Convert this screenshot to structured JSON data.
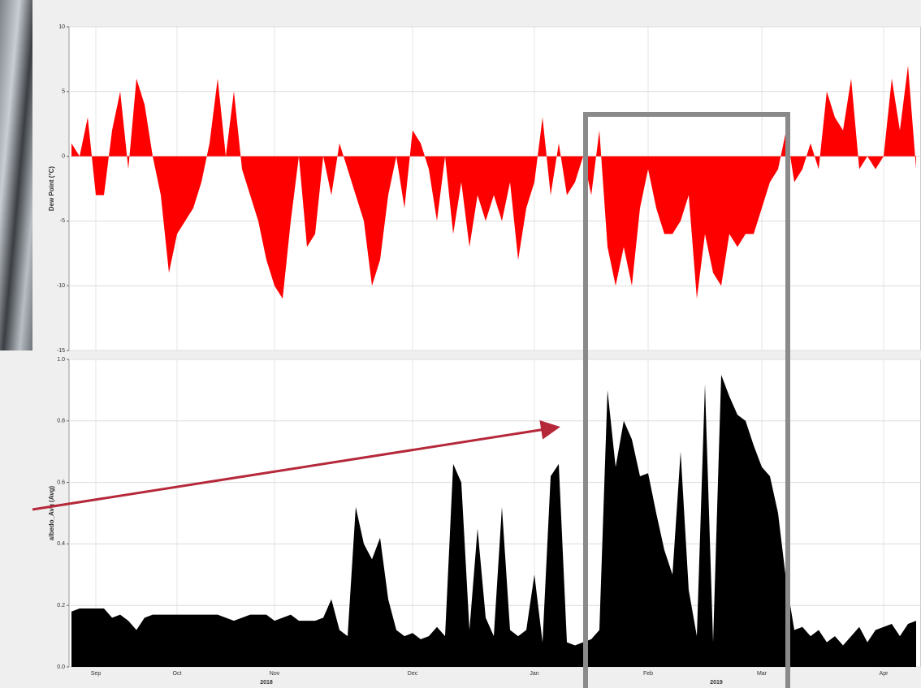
{
  "chart_data": [
    {
      "type": "area",
      "y_label": "Dew Point (°C)",
      "color": "#ff0000",
      "ylim": [
        -15,
        10
      ],
      "yticks": [
        -15,
        -10,
        -5,
        0,
        5,
        10
      ],
      "grid": true,
      "values": [
        1,
        0,
        3,
        -3,
        -3,
        2,
        5,
        -1,
        6,
        4,
        0,
        -3,
        -9,
        -6,
        -5,
        -4,
        -2,
        1,
        6,
        0,
        5,
        -1,
        -3,
        -5,
        -8,
        -10,
        -11,
        -5,
        0,
        -7,
        -6,
        0,
        -3,
        1,
        -1,
        -3,
        -5,
        -10,
        -8,
        -3,
        0,
        -4,
        2,
        1,
        -1,
        -5,
        0,
        -6,
        -2,
        -7,
        -3,
        -5,
        -3,
        -5,
        -2,
        -8,
        -4,
        -2,
        3,
        -3,
        1,
        -3,
        -2,
        0,
        -3,
        2,
        -7,
        -10,
        -7,
        -10,
        -4,
        -1,
        -4,
        -6,
        -6,
        -5,
        -3,
        -11,
        -6,
        -9,
        -10,
        -6,
        -7,
        -6,
        -6,
        -4,
        -2,
        -1,
        2,
        -2,
        -1,
        1,
        -1,
        5,
        3,
        2,
        6,
        -1,
        0,
        -1,
        0,
        6,
        2,
        7,
        -1
      ]
    },
    {
      "type": "area",
      "y_label": "albedo_Avg (Avg)",
      "color": "#000000",
      "ylim": [
        0,
        1
      ],
      "yticks": [
        {
          "value": 0,
          "label": "0.0"
        },
        0.2,
        0.4,
        0.6,
        0.8,
        {
          "value": 1,
          "label": "1.0"
        }
      ],
      "grid": true,
      "categories": [
        null,
        null,
        null,
        "Sep",
        null,
        null,
        null,
        null,
        null,
        null,
        null,
        null,
        null,
        "Oct",
        null,
        null,
        null,
        null,
        null,
        null,
        null,
        null,
        null,
        null,
        null,
        "Nov",
        null,
        null,
        null,
        null,
        null,
        null,
        null,
        null,
        null,
        null,
        null,
        null,
        null,
        null,
        null,
        null,
        "Dec",
        null,
        null,
        null,
        null,
        null,
        null,
        null,
        null,
        null,
        null,
        null,
        null,
        null,
        null,
        "Jan",
        null,
        null,
        null,
        null,
        null,
        null,
        null,
        null,
        null,
        null,
        null,
        null,
        null,
        "Feb",
        null,
        null,
        null,
        null,
        null,
        null,
        null,
        null,
        null,
        null,
        null,
        null,
        null,
        "Mar",
        null,
        null,
        null,
        null,
        null,
        null,
        null,
        null,
        null,
        null,
        null,
        null,
        null,
        null,
        "Apr",
        null,
        null,
        null,
        null
      ],
      "year_labels": [
        "2018",
        "2019"
      ],
      "values": [
        0.18,
        0.19,
        0.19,
        0.19,
        0.19,
        0.16,
        0.17,
        0.15,
        0.12,
        0.16,
        0.17,
        0.17,
        0.17,
        0.17,
        0.17,
        0.17,
        0.17,
        0.17,
        0.17,
        0.16,
        0.15,
        0.16,
        0.17,
        0.17,
        0.17,
        0.15,
        0.16,
        0.17,
        0.15,
        0.15,
        0.15,
        0.16,
        0.22,
        0.12,
        0.1,
        0.52,
        0.4,
        0.35,
        0.42,
        0.22,
        0.12,
        0.1,
        0.11,
        0.09,
        0.1,
        0.13,
        0.1,
        0.66,
        0.6,
        0.12,
        0.45,
        0.16,
        0.1,
        0.52,
        0.12,
        0.1,
        0.12,
        0.3,
        0.08,
        0.62,
        0.66,
        0.08,
        0.07,
        0.08,
        0.09,
        0.12,
        0.9,
        0.65,
        0.8,
        0.74,
        0.62,
        0.63,
        0.5,
        0.38,
        0.3,
        0.7,
        0.25,
        0.1,
        0.92,
        0.08,
        0.95,
        0.88,
        0.82,
        0.8,
        0.72,
        0.65,
        0.62,
        0.5,
        0.28,
        0.12,
        0.13,
        0.1,
        0.12,
        0.08,
        0.1,
        0.07,
        0.1,
        0.13,
        0.08,
        0.12,
        0.13,
        0.14,
        0.1,
        0.14,
        0.15
      ]
    }
  ]
}
